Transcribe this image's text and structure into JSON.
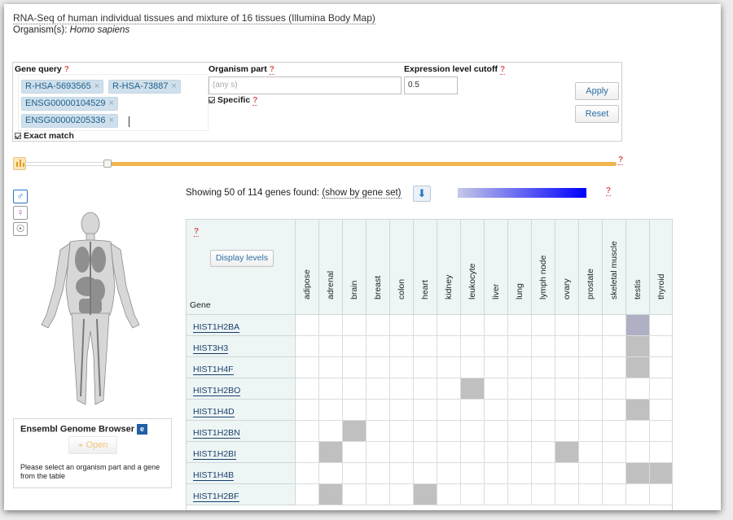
{
  "header": {
    "experiment_title": "RNA-Seq of human individual tissues and mixture of 16 tissues (Illumina Body Map)",
    "organism_label": "Organism(s):",
    "organism_value": "Homo sapiens"
  },
  "query": {
    "gene_query_label": "Gene query",
    "organism_part_label": "Organism part",
    "cutoff_label": "Expression level cutoff",
    "help": "?",
    "tags": [
      "R-HSA-5693565",
      "R-HSA-73887",
      "ENSG00000104529",
      "ENSG00000205336"
    ],
    "tag_remove": "×",
    "exact_match_label": "Exact match",
    "organism_part_placeholder": "(any s)",
    "specific_label": "Specific",
    "cutoff_value": "0.5",
    "apply_label": "Apply",
    "reset_label": "Reset"
  },
  "slider": {
    "handle_fraction": 0.13,
    "help": "?"
  },
  "results": {
    "showing_text": "Showing 50 of 114 genes found:",
    "show_by_gene_set": "(show by gene set)",
    "help": "?",
    "gradient_low": "#c6c8e6",
    "gradient_high": "#0000ff"
  },
  "anatomogram": {
    "male_icon": "male-icon",
    "female_icon": "female-icon",
    "brain_icon": "brain-icon"
  },
  "ensembl": {
    "title": "Ensembl Genome Browser",
    "open_label": "Open",
    "message": "Please select an organism part and a gene from the table"
  },
  "heatmap": {
    "help": "?",
    "display_levels_label": "Display levels",
    "gene_column_label": "Gene",
    "tissues": [
      "adipose",
      "adrenal",
      "brain",
      "breast",
      "colon",
      "heart",
      "kidney",
      "leukocyte",
      "liver",
      "lung",
      "lymph node",
      "ovary",
      "prostate",
      "skeletal muscle",
      "testis",
      "thyroid"
    ],
    "genes": [
      "HIST1H2BA",
      "HIST3H3",
      "HIST1H4F",
      "HIST1H2BO",
      "HIST1H4D",
      "HIST1H2BN",
      "HIST1H2BI",
      "HIST1H4B",
      "HIST1H2BF"
    ],
    "expressed": [
      [
        14
      ],
      [
        14
      ],
      [
        14
      ],
      [
        7
      ],
      [
        14
      ],
      [
        2
      ],
      [
        1,
        11
      ],
      [
        14,
        15
      ],
      [
        1,
        5
      ]
    ],
    "highlight_color": "#c0c0c0",
    "top_cell_color": "#b0b0c4"
  }
}
